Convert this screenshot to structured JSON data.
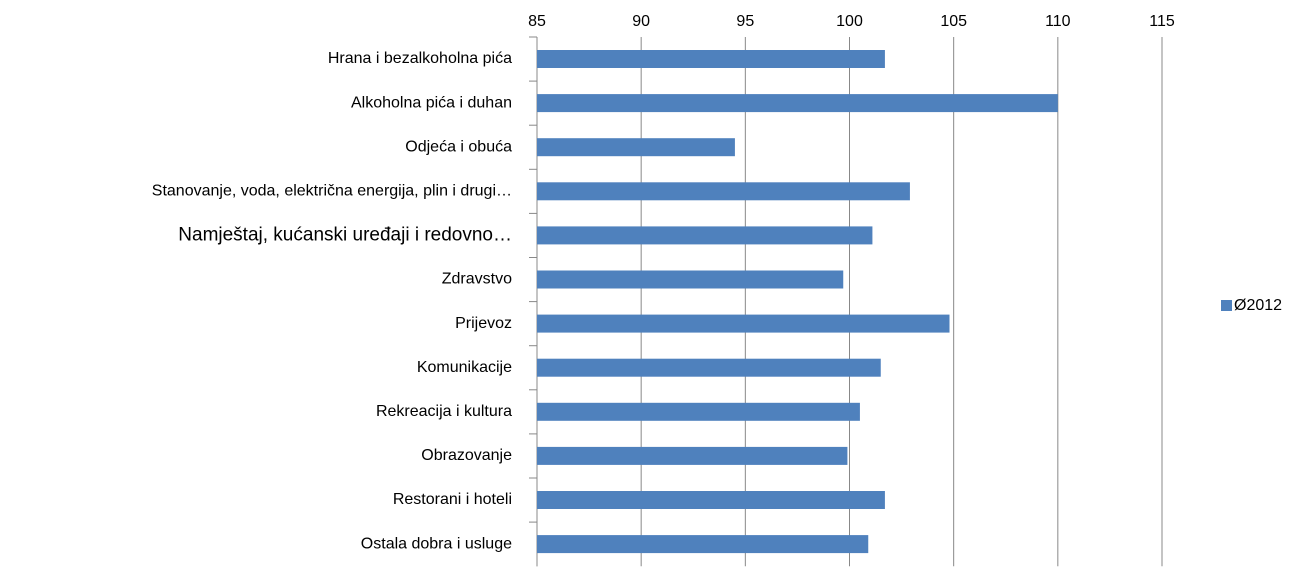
{
  "chart_data": {
    "type": "bar",
    "orientation": "horizontal",
    "categories": [
      "Hrana i bezalkoholna pića",
      "Alkoholna pića i duhan",
      "Odjeća i obuća",
      "Stanovanje, voda, električna energija, plin i drugi…",
      "Namještaj, kućanski uređaji i redovno…",
      "Zdravstvo",
      "Prijevoz",
      "Komunikacije",
      "Rekreacija i kultura",
      "Obrazovanje",
      "Restorani i hoteli",
      "Ostala dobra i usluge"
    ],
    "series": [
      {
        "name": "Ø2012",
        "color": "#4f81bd",
        "values": [
          101.7,
          110.0,
          94.5,
          102.9,
          101.1,
          99.7,
          104.8,
          101.5,
          100.5,
          99.9,
          101.7,
          100.9
        ]
      }
    ],
    "xlim": [
      85,
      115
    ],
    "xticks": [
      85,
      90,
      95,
      100,
      105,
      110,
      115
    ],
    "grid": true,
    "legend": "right"
  }
}
